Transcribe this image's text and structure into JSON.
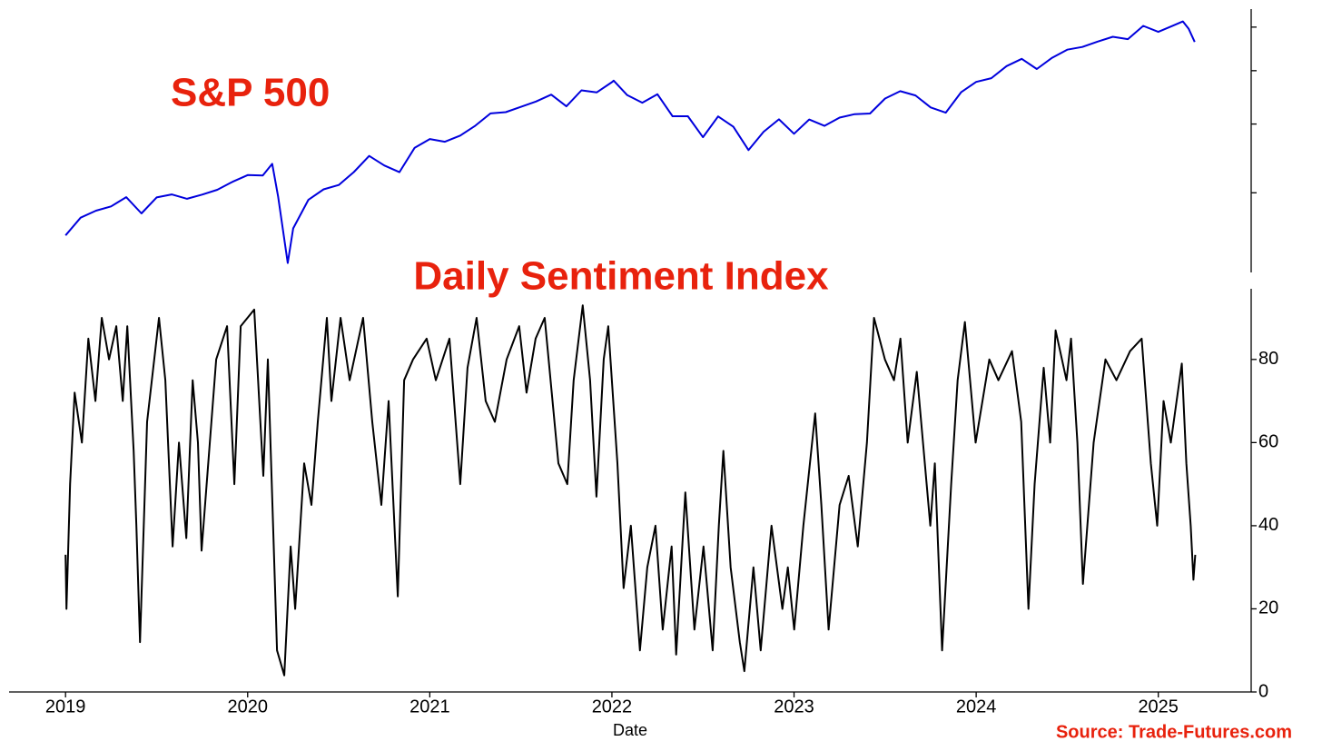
{
  "chart_data": [
    {
      "type": "line",
      "title": "S&P 500",
      "log_scale": true,
      "color": "#0000dd",
      "xlim": [
        2018.69,
        2025.51
      ],
      "ylim": [
        2150,
        6470
      ],
      "yticks": [
        3000,
        4000,
        5000,
        6000
      ],
      "x": [
        2019.0,
        2019.083,
        2019.167,
        2019.25,
        2019.333,
        2019.417,
        2019.5,
        2019.583,
        2019.667,
        2019.75,
        2019.833,
        2019.917,
        2020.0,
        2020.083,
        2020.135,
        2020.167,
        2020.22,
        2020.25,
        2020.333,
        2020.417,
        2020.5,
        2020.583,
        2020.667,
        2020.75,
        2020.833,
        2020.917,
        2021.0,
        2021.083,
        2021.167,
        2021.25,
        2021.333,
        2021.417,
        2021.5,
        2021.583,
        2021.667,
        2021.75,
        2021.833,
        2021.917,
        2022.0,
        2022.01,
        2022.083,
        2022.167,
        2022.25,
        2022.333,
        2022.417,
        2022.5,
        2022.583,
        2022.667,
        2022.75,
        2022.833,
        2022.917,
        2023.0,
        2023.083,
        2023.167,
        2023.25,
        2023.333,
        2023.417,
        2023.5,
        2023.583,
        2023.667,
        2023.75,
        2023.833,
        2023.917,
        2024.0,
        2024.083,
        2024.167,
        2024.25,
        2024.333,
        2024.417,
        2024.5,
        2024.583,
        2024.667,
        2024.75,
        2024.833,
        2024.917,
        2025.0,
        2025.083,
        2025.135,
        2025.167,
        2025.2
      ],
      "values": [
        2510,
        2704,
        2784,
        2834,
        2946,
        2752,
        2942,
        2980,
        2926,
        2977,
        3038,
        3141,
        3231,
        3226,
        3386,
        2954,
        2237,
        2585,
        2912,
        3044,
        3100,
        3271,
        3500,
        3363,
        3270,
        3622,
        3756,
        3714,
        3811,
        3973,
        4181,
        4204,
        4298,
        4395,
        4523,
        4308,
        4605,
        4567,
        4766,
        4797,
        4516,
        4374,
        4530,
        4132,
        4132,
        3785,
        4130,
        3955,
        3586,
        3872,
        4080,
        3840,
        4077,
        3970,
        4109,
        4169,
        4180,
        4450,
        4589,
        4508,
        4288,
        4194,
        4568,
        4770,
        4846,
        5096,
        5254,
        5036,
        5278,
        5460,
        5522,
        5648,
        5762,
        5705,
        6032,
        5882,
        6041,
        6144,
        5955,
        5639
      ]
    },
    {
      "type": "line",
      "title": "Daily Sentiment Index",
      "xlabel": "Date",
      "color": "#000000",
      "xlim": [
        2018.69,
        2025.51
      ],
      "ylim": [
        0,
        97
      ],
      "yticks": [
        0,
        20,
        40,
        60,
        80
      ],
      "xticks": [
        2019,
        2020,
        2021,
        2022,
        2023,
        2024,
        2025
      ],
      "x": [
        2019.0,
        2019.005,
        2019.025,
        2019.05,
        2019.09,
        2019.125,
        2019.164,
        2019.199,
        2019.239,
        2019.279,
        2019.314,
        2019.339,
        2019.374,
        2019.389,
        2019.409,
        2019.448,
        2019.513,
        2019.548,
        2019.588,
        2019.623,
        2019.663,
        2019.698,
        2019.727,
        2019.747,
        2019.827,
        2019.887,
        2019.927,
        2019.962,
        2020.036,
        2020.086,
        2020.111,
        2020.161,
        2020.201,
        2020.236,
        2020.261,
        2020.31,
        2020.35,
        2020.385,
        2020.435,
        2020.46,
        2020.51,
        2020.56,
        2020.634,
        2020.684,
        2020.734,
        2020.774,
        2020.824,
        2020.859,
        2020.908,
        2020.983,
        2021.033,
        2021.108,
        2021.167,
        2021.207,
        2021.257,
        2021.307,
        2021.357,
        2021.422,
        2021.491,
        2021.531,
        2021.581,
        2021.631,
        2021.706,
        2021.755,
        2021.79,
        2021.84,
        2021.88,
        2021.915,
        2021.955,
        2021.98,
        2022.03,
        2022.064,
        2022.104,
        2022.154,
        2022.194,
        2022.239,
        2022.279,
        2022.328,
        2022.353,
        2022.403,
        2022.453,
        2022.503,
        2022.553,
        2022.587,
        2022.612,
        2022.652,
        2022.702,
        2022.727,
        2022.777,
        2022.817,
        2022.876,
        2022.936,
        2022.966,
        2023.001,
        2023.051,
        2023.116,
        2023.15,
        2023.19,
        2023.25,
        2023.3,
        2023.35,
        2023.4,
        2023.439,
        2023.499,
        2023.549,
        2023.584,
        2023.624,
        2023.674,
        2023.748,
        2023.773,
        2023.813,
        2023.863,
        2023.898,
        2023.938,
        2023.997,
        2024.072,
        2024.122,
        2024.197,
        2024.247,
        2024.287,
        2024.321,
        2024.371,
        2024.406,
        2024.436,
        2024.496,
        2024.521,
        2024.556,
        2024.586,
        2024.645,
        2024.71,
        2024.77,
        2024.845,
        2024.909,
        2024.959,
        2024.994,
        2025.029,
        2025.069,
        2025.129,
        2025.154,
        2025.178,
        2025.193,
        2025.203
      ],
      "values": [
        33,
        20,
        50,
        72,
        60,
        85,
        70,
        90,
        80,
        88,
        70,
        88,
        58,
        40,
        12,
        65,
        90,
        75,
        35,
        60,
        37,
        75,
        60,
        34,
        80,
        88,
        50,
        88,
        92,
        52,
        80,
        10,
        4,
        35,
        20,
        55,
        45,
        65,
        90,
        70,
        90,
        75,
        90,
        65,
        45,
        70,
        23,
        75,
        80,
        85,
        75,
        85,
        50,
        78,
        90,
        70,
        65,
        80,
        88,
        72,
        85,
        90,
        55,
        50,
        75,
        93,
        75,
        47,
        80,
        88,
        55,
        25,
        40,
        10,
        30,
        40,
        15,
        35,
        9,
        48,
        15,
        35,
        10,
        40,
        58,
        30,
        12,
        5,
        30,
        10,
        40,
        20,
        30,
        15,
        40,
        67,
        45,
        15,
        45,
        52,
        35,
        60,
        90,
        80,
        75,
        85,
        60,
        77,
        40,
        55,
        10,
        50,
        75,
        89,
        60,
        80,
        75,
        82,
        65,
        20,
        50,
        78,
        60,
        87,
        75,
        85,
        60,
        26,
        60,
        80,
        75,
        82,
        85,
        55,
        40,
        70,
        60,
        79,
        55,
        40,
        27,
        33
      ]
    }
  ],
  "source": "Source: Trade-Futures.com"
}
